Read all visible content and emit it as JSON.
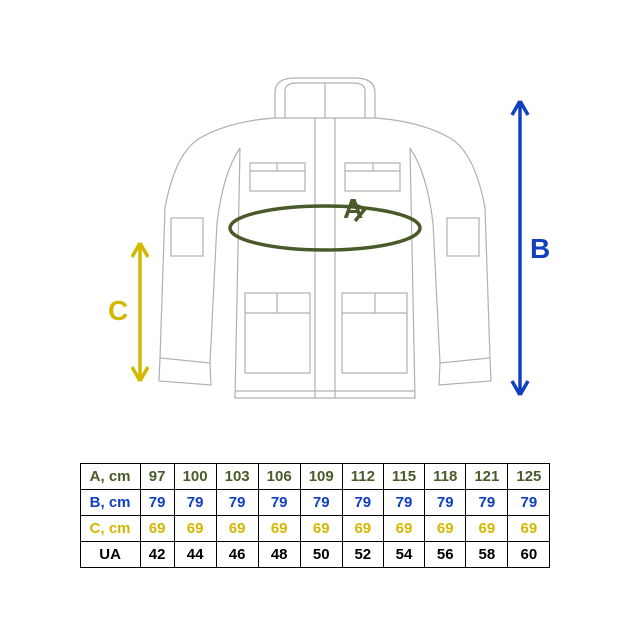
{
  "diagram": {
    "labels": {
      "A": {
        "text": "A",
        "color": "#4a5a2a"
      },
      "B": {
        "text": "B",
        "color": "#1040c0"
      },
      "C": {
        "text": "C",
        "color": "#d4b800"
      }
    },
    "jacket_stroke": "#b0b0b0",
    "jacket_stroke_width": 1.2,
    "background": "#ffffff"
  },
  "table": {
    "rows": [
      {
        "label": "A, cm",
        "color": "#4a5a2a",
        "values": [
          "97",
          "100",
          "103",
          "106",
          "109",
          "112",
          "115",
          "118",
          "121",
          "125"
        ]
      },
      {
        "label": "B, cm",
        "color": "#1040c0",
        "values": [
          "79",
          "79",
          "79",
          "79",
          "79",
          "79",
          "79",
          "79",
          "79",
          "79"
        ]
      },
      {
        "label": "C, cm",
        "color": "#d4b800",
        "values": [
          "69",
          "69",
          "69",
          "69",
          "69",
          "69",
          "69",
          "69",
          "69",
          "69"
        ]
      },
      {
        "label": "UA",
        "color": "#000000",
        "values": [
          "42",
          "44",
          "46",
          "48",
          "50",
          "52",
          "54",
          "56",
          "58",
          "60"
        ]
      }
    ],
    "border_color": "#000000",
    "cell_fontsize": 15
  }
}
